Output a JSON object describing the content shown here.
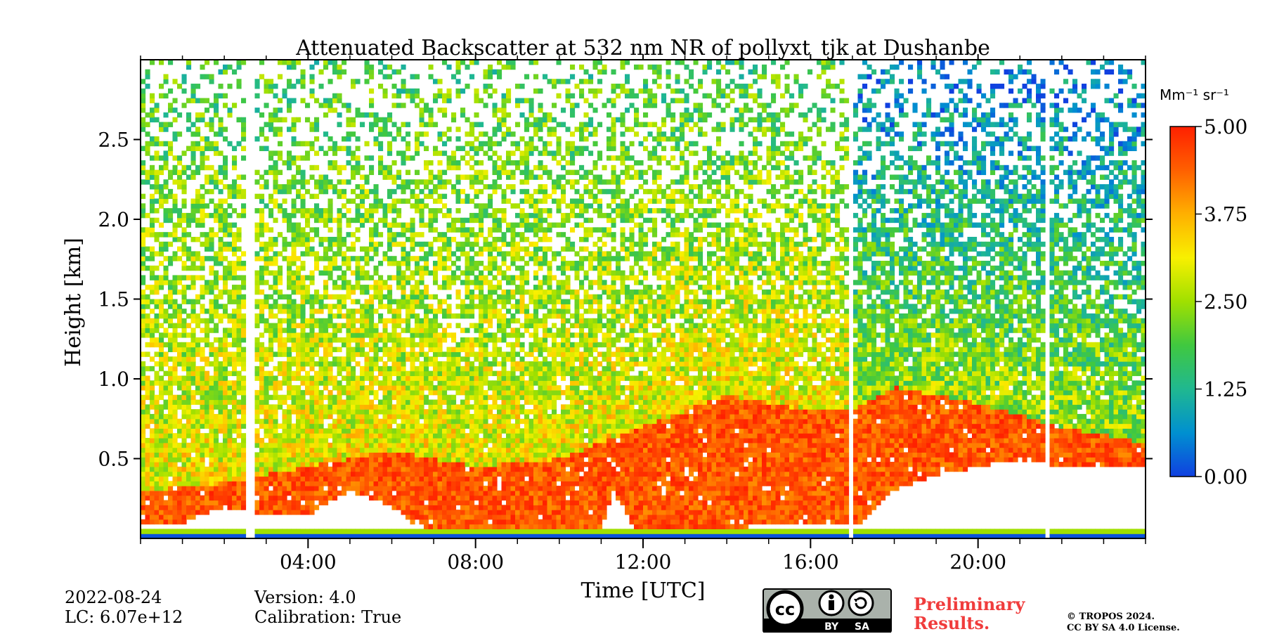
{
  "chart_data": {
    "type": "heatmap",
    "title": "Attenuated Backscatter at 532 nm NR of pollyxt_tjk at Dushanbe",
    "xlabel": "Time [UTC]",
    "ylabel": "Height [km]",
    "xlim_hours": [
      0,
      24
    ],
    "ylim_km": [
      0,
      3.0
    ],
    "x_ticks": [
      {
        "hour": 4,
        "label": "04:00"
      },
      {
        "hour": 8,
        "label": "08:00"
      },
      {
        "hour": 12,
        "label": "12:00"
      },
      {
        "hour": 16,
        "label": "16:00"
      },
      {
        "hour": 20,
        "label": "20:00"
      }
    ],
    "x_minor_ticks_hours": [
      0,
      1,
      2,
      3,
      5,
      6,
      7,
      9,
      10,
      11,
      13,
      14,
      15,
      17,
      18,
      19,
      21,
      22,
      23,
      24
    ],
    "y_ticks": [
      {
        "value": 0.5,
        "label": "0.5"
      },
      {
        "value": 1.0,
        "label": "1.0"
      },
      {
        "value": 1.5,
        "label": "1.5"
      },
      {
        "value": 2.0,
        "label": "2.0"
      },
      {
        "value": 2.5,
        "label": "2.5"
      }
    ],
    "colorbar": {
      "unit_label": "Mm⁻¹ sr⁻¹",
      "range": [
        0,
        5
      ],
      "ticks": [
        {
          "value": 0,
          "label": "0.00"
        },
        {
          "value": 1.25,
          "label": "1.25"
        },
        {
          "value": 2.5,
          "label": "2.50"
        },
        {
          "value": 3.75,
          "label": "3.75"
        },
        {
          "value": 5,
          "label": "5.00"
        }
      ],
      "colors": [
        "#1040e0",
        "#0090d0",
        "#20b890",
        "#40c840",
        "#a0e000",
        "#f8f000",
        "#ffb000",
        "#ff6000",
        "#ff2000"
      ]
    },
    "data_gaps_hours": [
      [
        2.55,
        2.7
      ],
      [
        16.9,
        17.05
      ],
      [
        21.6,
        21.75
      ]
    ],
    "boundary_layer_top_km": [
      [
        0,
        0.3
      ],
      [
        2,
        0.35
      ],
      [
        4,
        0.45
      ],
      [
        6,
        0.55
      ],
      [
        8,
        0.45
      ],
      [
        10,
        0.5
      ],
      [
        12,
        0.7
      ],
      [
        14,
        0.9
      ],
      [
        16,
        0.8
      ],
      [
        17,
        0.8
      ],
      [
        18,
        0.95
      ],
      [
        20,
        0.85
      ],
      [
        22,
        0.7
      ],
      [
        24,
        0.6
      ]
    ],
    "white_region_top_km": [
      [
        0,
        0.1
      ],
      [
        1,
        0.1
      ],
      [
        2,
        0.2
      ],
      [
        3,
        0.15
      ],
      [
        4,
        0.15
      ],
      [
        5,
        0.3
      ],
      [
        6,
        0.2
      ],
      [
        6.5,
        0.1
      ],
      [
        7,
        0.05
      ],
      [
        11,
        0.05
      ],
      [
        11.3,
        0.3
      ],
      [
        11.8,
        0.05
      ],
      [
        17.2,
        0.1
      ],
      [
        18,
        0.3
      ],
      [
        19,
        0.4
      ],
      [
        20,
        0.45
      ],
      [
        21,
        0.5
      ],
      [
        22,
        0.45
      ],
      [
        24,
        0.45
      ]
    ]
  },
  "footer": {
    "date": "2022-08-24",
    "lc": "LC: 6.07e+12",
    "version": "Version: 4.0",
    "calibration": "Calibration: True",
    "preliminary_line1": "Preliminary",
    "preliminary_line2": "Results.",
    "copyright_line1": "© TROPOS 2024.",
    "copyright_line2": "CC BY SA 4.0 License.",
    "license_badge_text": "BY SA"
  }
}
